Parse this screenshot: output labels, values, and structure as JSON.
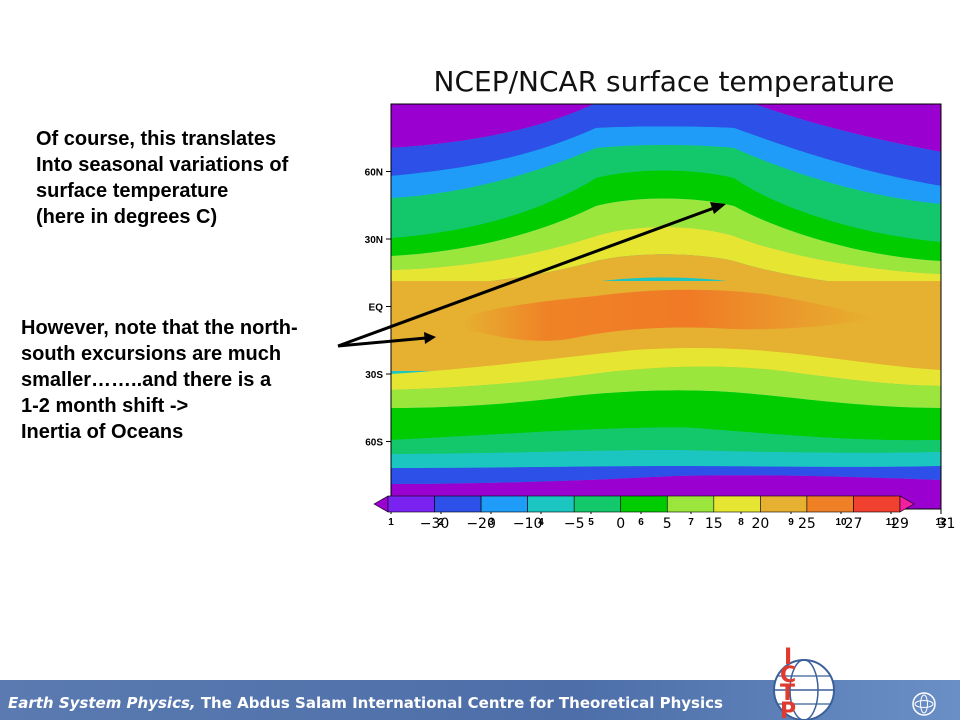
{
  "notes": {
    "note1_lines": [
      "Of course, this translates",
      "Into seasonal variations of",
      "surface temperature",
      "(here in degrees C)"
    ],
    "note2_lines": [
      "However, note that the north-",
      "south excursions are much",
      "smaller……..and there is a",
      "1-2 month shift ->",
      "Inertia of Oceans"
    ]
  },
  "footer": {
    "italic_part": "Earth System Physics,",
    "rest": " The Abdus Salam International Centre for Theoretical Physics",
    "logo_letters": [
      "I",
      "C",
      "T",
      "P"
    ]
  },
  "colors": {
    "footer_blue": "#4d6ea8",
    "logo_red": "#e03a2f"
  },
  "chart_data": {
    "type": "heatmap",
    "title": "NCEP/NCAR surface temperature",
    "x_ticks": [
      "1",
      "2",
      "3",
      "4",
      "5",
      "6",
      "7",
      "8",
      "9",
      "10",
      "11",
      "12"
    ],
    "y_ticks": [
      "60N",
      "30N",
      "EQ",
      "30S",
      "60S"
    ],
    "y_tick_values": [
      60,
      30,
      0,
      -30,
      -60
    ],
    "ylim": [
      -90,
      90
    ],
    "xlim": [
      1,
      12
    ],
    "colorbar_labels": [
      "-30",
      "-20",
      "-10",
      "-5",
      "0",
      "5",
      "15",
      "20",
      "25",
      "27",
      "29",
      "31"
    ],
    "colorbar_colors": [
      "#9a00d0",
      "#7a22f0",
      "#2c50e8",
      "#1f9cf8",
      "#1cc6c0",
      "#12c86a",
      "#00cc00",
      "#9ae63c",
      "#e6e632",
      "#e6b030",
      "#f08026",
      "#f04030",
      "#f020a0"
    ],
    "max_warm_month": 7.5,
    "note": "surface temperature in degrees C"
  }
}
